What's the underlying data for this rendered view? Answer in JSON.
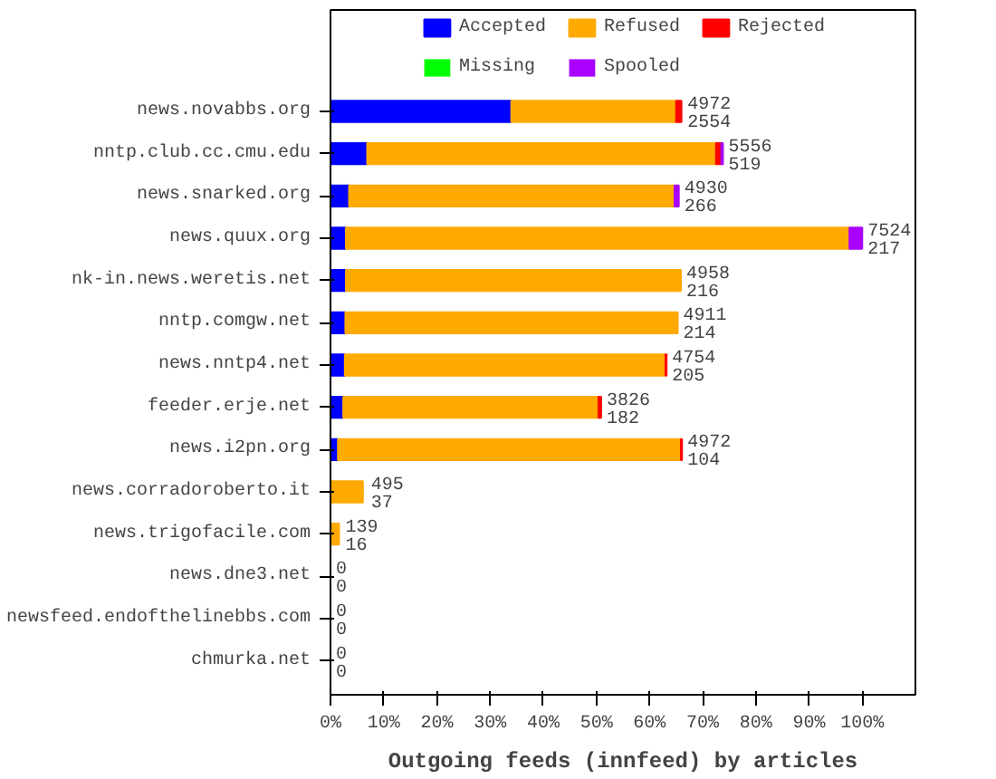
{
  "chart_data": {
    "type": "bar",
    "orientation": "horizontal",
    "stacked": true,
    "xlabel": "Outgoing feeds (innfeed) by articles",
    "categories": [
      "news.novabbs.org",
      "nntp.club.cc.cmu.edu",
      "news.snarked.org",
      "news.quux.org",
      "nk-in.news.weretis.net",
      "nntp.comgw.net",
      "news.nntp4.net",
      "feeder.erje.net",
      "news.i2pn.org",
      "news.corradoroberto.it",
      "news.trigofacile.com",
      "news.dne3.net",
      "newsfeed.endofthelinebbs.com",
      "chmurka.net"
    ],
    "series": [
      {
        "name": "Accepted",
        "color": "#0000ff",
        "values": [
          34.0,
          6.9,
          3.5,
          2.9,
          2.9,
          2.8,
          2.7,
          2.4,
          1.4,
          null,
          null,
          0,
          0,
          0
        ]
      },
      {
        "name": "Refused",
        "color": "#ffaa00",
        "values": [
          31.0,
          65.6,
          61.2,
          94.7,
          63.0,
          62.5,
          60.3,
          48.0,
          64.5,
          6.1,
          1.6,
          0,
          0,
          0
        ]
      },
      {
        "name": "Rejected",
        "color": "#ff0000",
        "values": [
          1.0,
          1.0,
          0,
          0,
          0,
          0,
          0.2,
          0.5,
          0.2,
          0,
          0,
          0,
          0,
          0
        ]
      },
      {
        "name": "Missing",
        "color": "#00ff00",
        "values": [
          0,
          0,
          0,
          0,
          0,
          0,
          0,
          0,
          0,
          0,
          0,
          0,
          0,
          0
        ]
      },
      {
        "name": "Spooled",
        "color": "#aa00ff",
        "values": [
          0,
          0.3,
          0.8,
          2.4,
          0,
          0,
          0,
          0,
          0,
          0,
          0,
          0,
          0,
          0
        ]
      }
    ],
    "annotations": [
      {
        "text": "4972\n2554",
        "x": 66.1,
        "y": "news.novabbs.org"
      },
      {
        "text": "5556\n519",
        "x": 73.8,
        "y": "nntp.club.cc.cmu.edu"
      },
      {
        "text": "4930\n266",
        "x": 65.5,
        "y": "news.snarked.org"
      },
      {
        "text": "7524\n217",
        "x": 100,
        "y": "news.quux.org"
      },
      {
        "text": "4958\n216",
        "x": 65.9,
        "y": "nk-in.news.weretis.net"
      },
      {
        "text": "4911\n214",
        "x": 65.3,
        "y": "nntp.comgw.net"
      },
      {
        "text": "4754\n205",
        "x": 63.2,
        "y": "news.nntp4.net"
      },
      {
        "text": "3826\n182",
        "x": 50.9,
        "y": "feeder.erje.net"
      },
      {
        "text": "4972\n104",
        "x": 66.1,
        "y": "news.i2pn.org"
      },
      {
        "text": "495\n37",
        "x": 6.6,
        "y": "news.corradoroberto.it"
      },
      {
        "text": "139\n16",
        "x": 1.8,
        "y": "news.trigofacile.com"
      },
      {
        "text": "0\n0",
        "x": 0,
        "y": "news.dne3.net"
      },
      {
        "text": "0\n0",
        "x": 0,
        "y": "newsfeed.endofthelinebbs.com"
      },
      {
        "text": "0\n0",
        "x": 0,
        "y": "chmurka.net"
      }
    ],
    "xlim": [
      0,
      110
    ],
    "xticks": [
      {
        "value": 0,
        "label": "0%"
      },
      {
        "value": 10,
        "label": "10%"
      },
      {
        "value": 20,
        "label": "20%"
      },
      {
        "value": 30,
        "label": "30%"
      },
      {
        "value": 40,
        "label": "40%"
      },
      {
        "value": 50,
        "label": "50%"
      },
      {
        "value": 60,
        "label": "60%"
      },
      {
        "value": 70,
        "label": "70%"
      },
      {
        "value": 80,
        "label": "80%"
      },
      {
        "value": 90,
        "label": "90%"
      },
      {
        "value": 100,
        "label": "100%"
      }
    ],
    "grid": false,
    "legend": "top"
  }
}
